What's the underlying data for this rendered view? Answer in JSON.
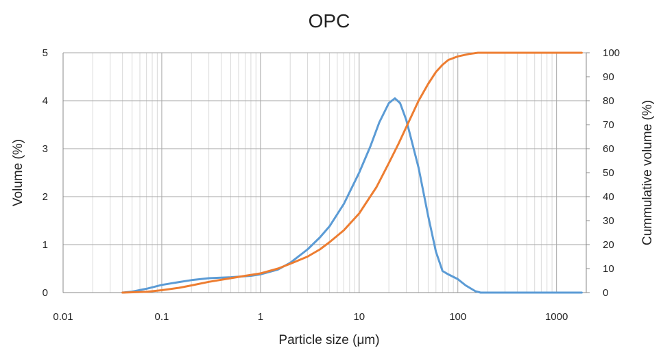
{
  "chart_data": {
    "type": "line",
    "title": "OPC",
    "xlabel": "Particle size (μm)",
    "ylabel": "Volume (%)",
    "y2label": "Cummulative volume (%)",
    "xscale": "log",
    "xlim": [
      0.01,
      2000
    ],
    "ylim": [
      0,
      5
    ],
    "y2lim": [
      0,
      100
    ],
    "grid": true,
    "x_tick_labels": [
      "0.01",
      "0.1",
      "1",
      "10",
      "100",
      "1000"
    ],
    "y_tick_labels": [
      "0",
      "1",
      "2",
      "3",
      "4",
      "5"
    ],
    "y2_tick_labels": [
      "0",
      "10",
      "20",
      "30",
      "40",
      "50",
      "60",
      "70",
      "80",
      "90",
      "100"
    ],
    "series": [
      {
        "axis": "left",
        "color": "#5b9bd5",
        "x": [
          0.04,
          0.05,
          0.07,
          0.1,
          0.15,
          0.2,
          0.3,
          0.5,
          0.8,
          1.0,
          1.5,
          2.0,
          3.0,
          4.0,
          5.0,
          7.0,
          10.0,
          13.0,
          16.0,
          20.0,
          23.0,
          26.0,
          30.0,
          40.0,
          50.0,
          60.0,
          70.0,
          80.0,
          100.0,
          120.0,
          150.0,
          170.0,
          300.0,
          1000.0,
          1800.0
        ],
        "y": [
          0.0,
          0.02,
          0.08,
          0.16,
          0.22,
          0.26,
          0.3,
          0.32,
          0.35,
          0.38,
          0.48,
          0.62,
          0.9,
          1.15,
          1.38,
          1.85,
          2.5,
          3.05,
          3.55,
          3.95,
          4.05,
          3.95,
          3.6,
          2.6,
          1.6,
          0.85,
          0.45,
          0.38,
          0.28,
          0.15,
          0.03,
          0.0,
          0.0,
          0.0,
          0.0
        ]
      },
      {
        "axis": "right",
        "color": "#ed7d31",
        "x": [
          0.04,
          0.07,
          0.1,
          0.15,
          0.2,
          0.3,
          0.5,
          0.7,
          1.0,
          1.5,
          2.0,
          3.0,
          4.0,
          5.0,
          7.0,
          10.0,
          15.0,
          20.0,
          25.0,
          30.0,
          40.0,
          50.0,
          60.0,
          70.0,
          80.0,
          100.0,
          130.0,
          160.0,
          200.0,
          500.0,
          1000.0,
          1800.0
        ],
        "y": [
          0.0,
          0.3,
          1.0,
          2.0,
          3.0,
          4.5,
          6.0,
          7.0,
          8.0,
          10.0,
          12.0,
          15.0,
          18.0,
          21.0,
          26.0,
          33.0,
          44.0,
          54.0,
          62.0,
          69.0,
          80.0,
          87.0,
          92.0,
          95.0,
          97.0,
          98.5,
          99.5,
          100.0,
          100.0,
          100.0,
          100.0,
          100.0
        ]
      }
    ]
  }
}
